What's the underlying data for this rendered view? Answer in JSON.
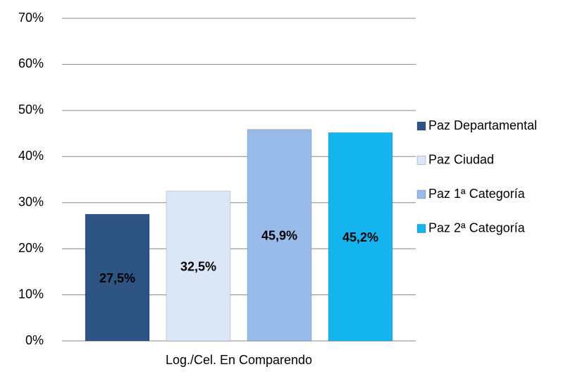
{
  "chart_data": {
    "type": "bar",
    "categories": [
      "Log./Cel. En Comparendo"
    ],
    "series": [
      {
        "name": "Paz Departamental",
        "color": "#2e5484",
        "values": [
          27.5
        ],
        "value_labels": [
          "27,5%"
        ]
      },
      {
        "name": "Paz Ciudad",
        "color": "#dbe7f7",
        "values": [
          32.5
        ],
        "value_labels": [
          "32,5%"
        ]
      },
      {
        "name": "Paz 1ª Categoría",
        "color": "#98bbea",
        "values": [
          45.9
        ],
        "value_labels": [
          "45,9%"
        ]
      },
      {
        "name": "Paz 2ª Categoría",
        "color": "#14b4ee",
        "values": [
          45.2
        ],
        "value_labels": [
          "45,2%"
        ]
      }
    ],
    "ylim": [
      0,
      70
    ],
    "yticks": [
      {
        "value": 0,
        "label": "0%"
      },
      {
        "value": 10,
        "label": "10%"
      },
      {
        "value": 20,
        "label": "20%"
      },
      {
        "value": 30,
        "label": "30%"
      },
      {
        "value": 40,
        "label": "40%"
      },
      {
        "value": 50,
        "label": "50%"
      },
      {
        "value": 60,
        "label": "60%"
      },
      {
        "value": 70,
        "label": "70%"
      }
    ],
    "grid": true,
    "legend": "right"
  }
}
